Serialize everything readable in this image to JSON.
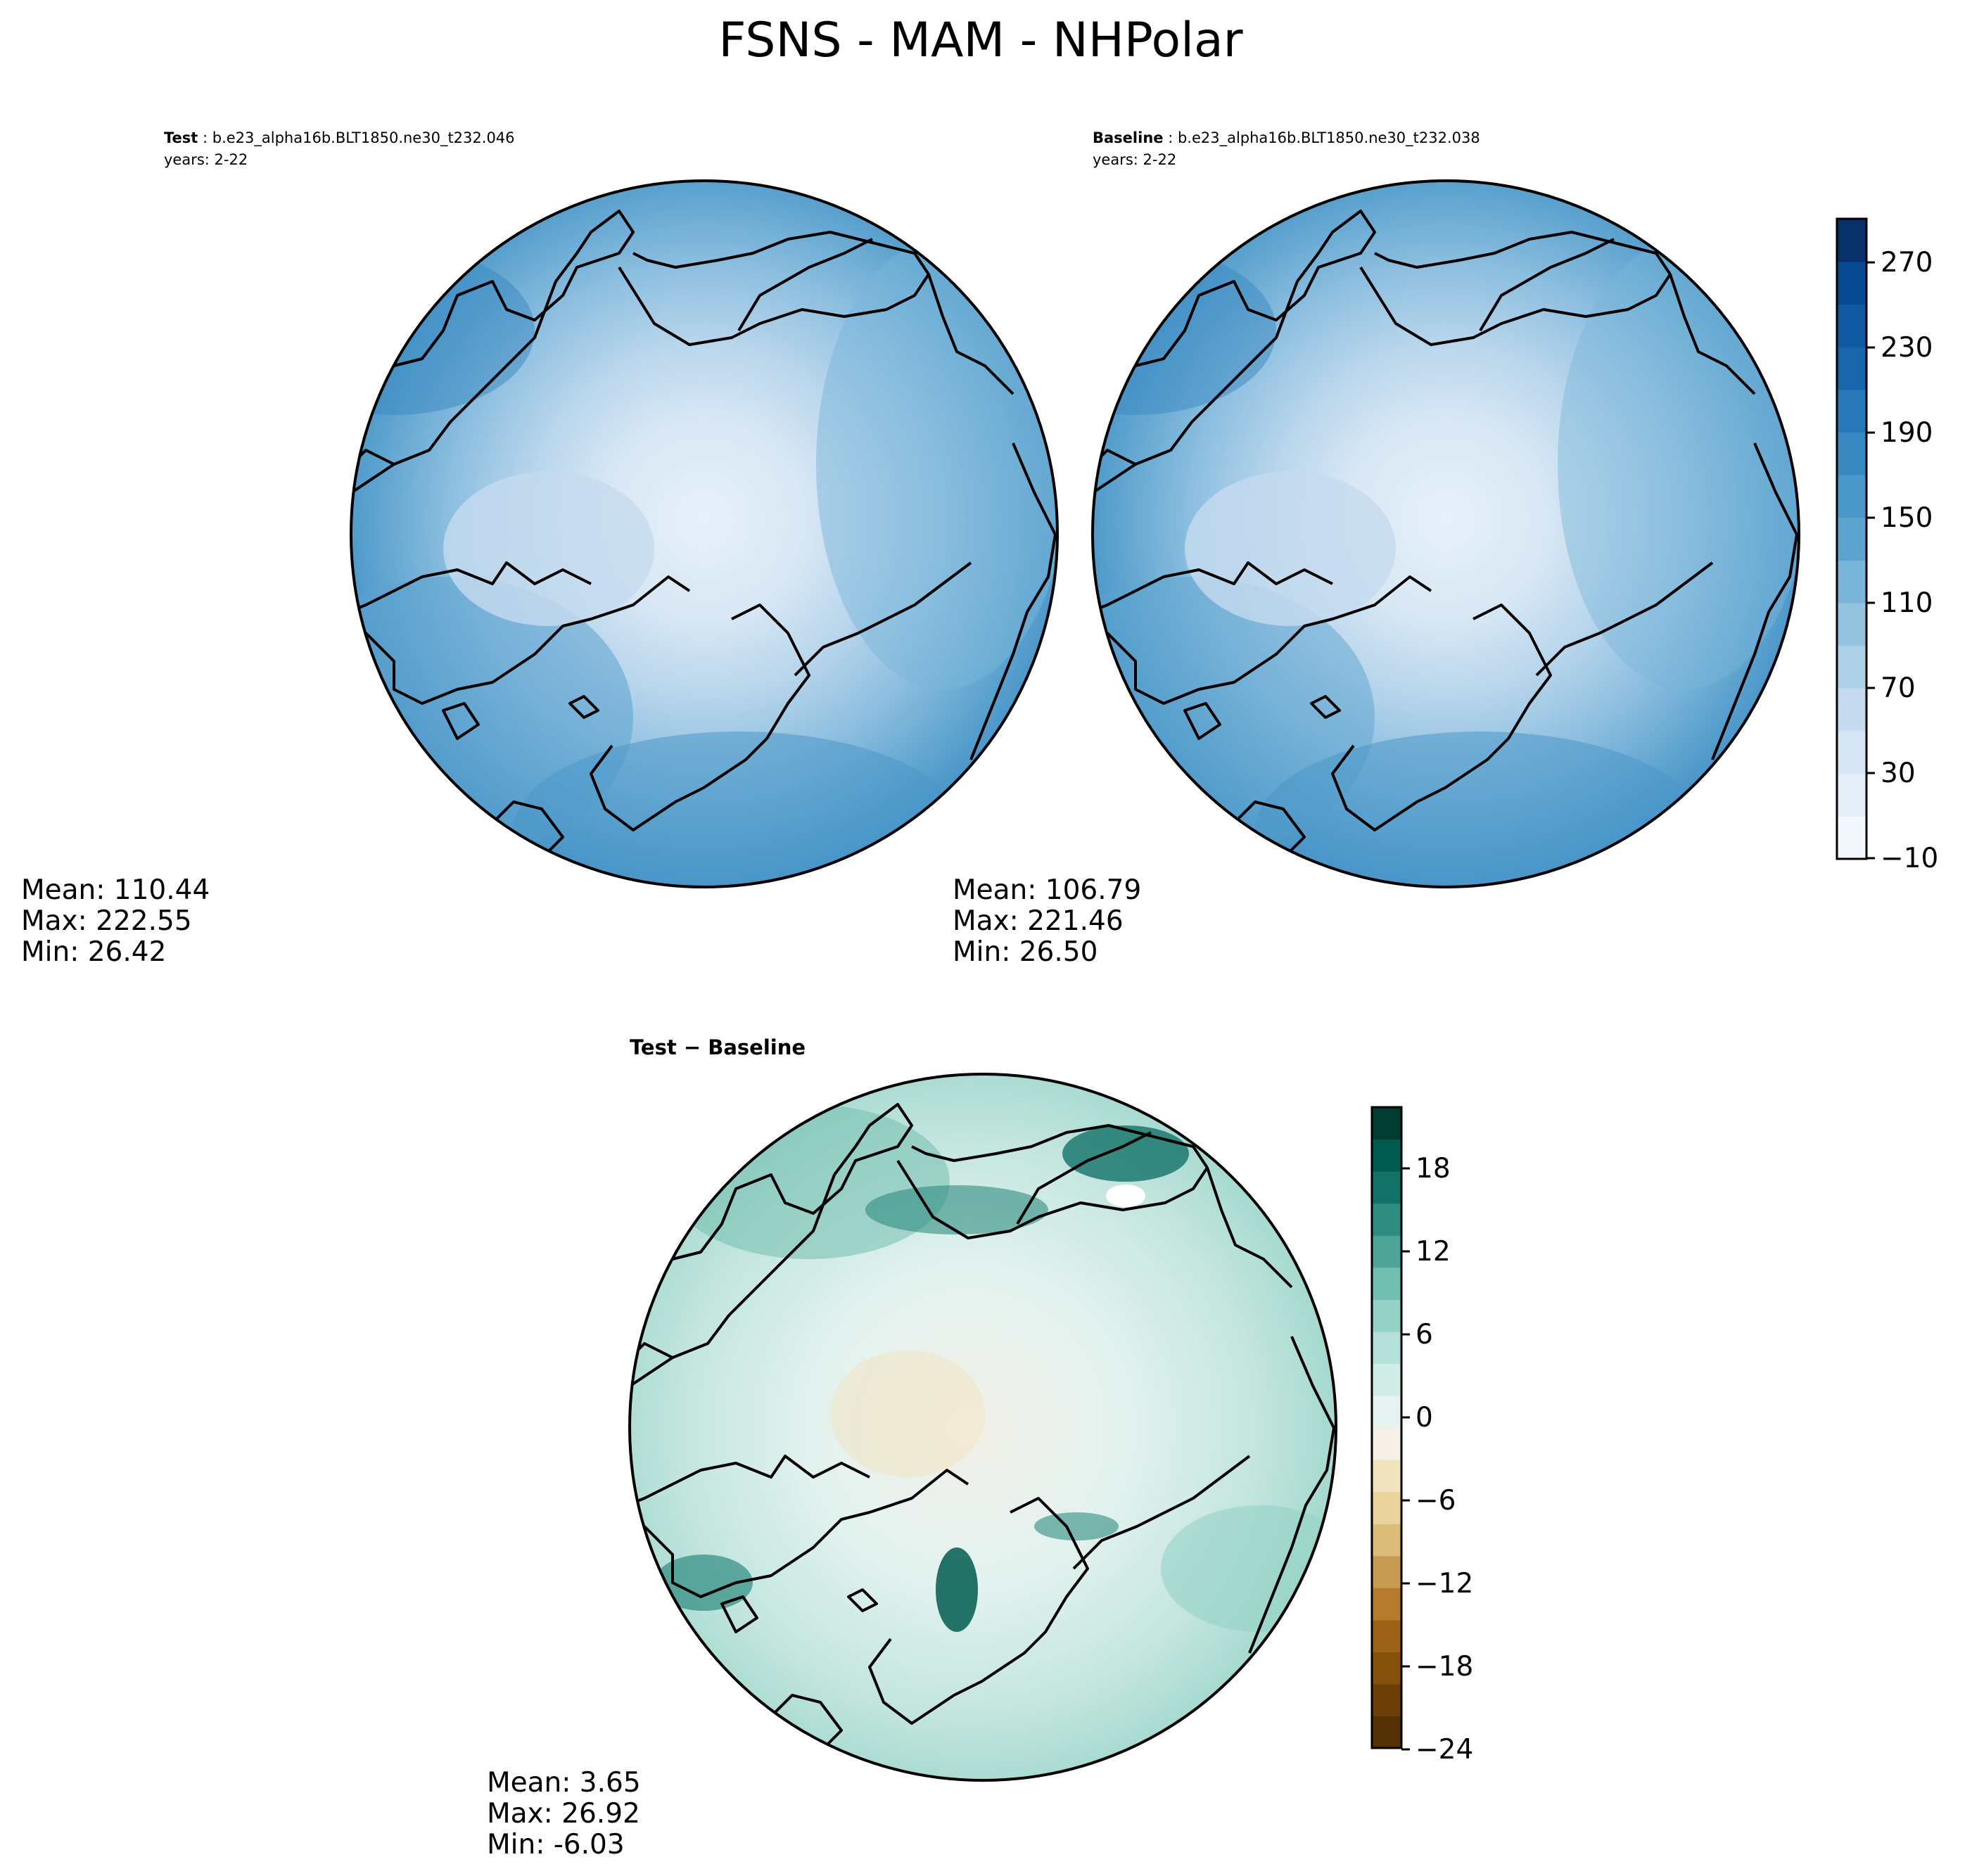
{
  "figure": {
    "title": "FSNS - MAM - NHPolar"
  },
  "panels": [
    {
      "id": "test",
      "header_bold": "Test",
      "header_rest": " : b.e23_alpha16b.BLT1850.ne30_t232.046",
      "years": "years: 2-22",
      "stats": {
        "mean": "Mean: 110.44",
        "max": "Max: 222.55",
        "min": "Min: 26.42"
      }
    },
    {
      "id": "baseline",
      "header_bold": "Baseline",
      "header_rest": " : b.e23_alpha16b.BLT1850.ne30_t232.038",
      "years": "years: 2-22",
      "stats": {
        "mean": "Mean: 106.79",
        "max": "Max: 221.46",
        "min": "Min: 26.50"
      }
    },
    {
      "id": "diff",
      "header_bold": "Test − Baseline",
      "header_rest": "",
      "years": "",
      "stats": {
        "mean": "Mean:  3.65",
        "max": "Max: 26.92",
        "min": "Min: -6.03"
      }
    }
  ],
  "colorbars": {
    "main": {
      "colormap": "Blues",
      "range": [
        -10,
        290
      ],
      "ticks": [
        "270",
        "230",
        "190",
        "150",
        "110",
        "70",
        "30",
        "−10"
      ],
      "colors": [
        "#f3f8fe",
        "#e3eef9",
        "#d6e6f4",
        "#c6dbef",
        "#b0d2e8",
        "#94c4df",
        "#79b5d9",
        "#5da3cf",
        "#4a98c9",
        "#3888c1",
        "#2979b9",
        "#1865ac",
        "#0e59a2",
        "#084a91",
        "#08306b"
      ]
    },
    "diff": {
      "colormap": "BrBG",
      "range": [
        -24,
        22
      ],
      "ticks": [
        "18",
        "12",
        "6",
        "0",
        "−6",
        "−12",
        "−18",
        "−24"
      ],
      "colors": [
        "#543005",
        "#6b3d07",
        "#85500c",
        "#9c6318",
        "#b57a2b",
        "#c79a51",
        "#dbbd78",
        "#ead49c",
        "#f2e4bf",
        "#f5f1e6",
        "#e6f3f1",
        "#d2ece8",
        "#b4e0d8",
        "#94d2c6",
        "#72beb0",
        "#4ea597",
        "#2e8c80",
        "#137268",
        "#015c50",
        "#003c30"
      ]
    }
  },
  "map_labels": {
    "coastline": "coastline-outline"
  }
}
